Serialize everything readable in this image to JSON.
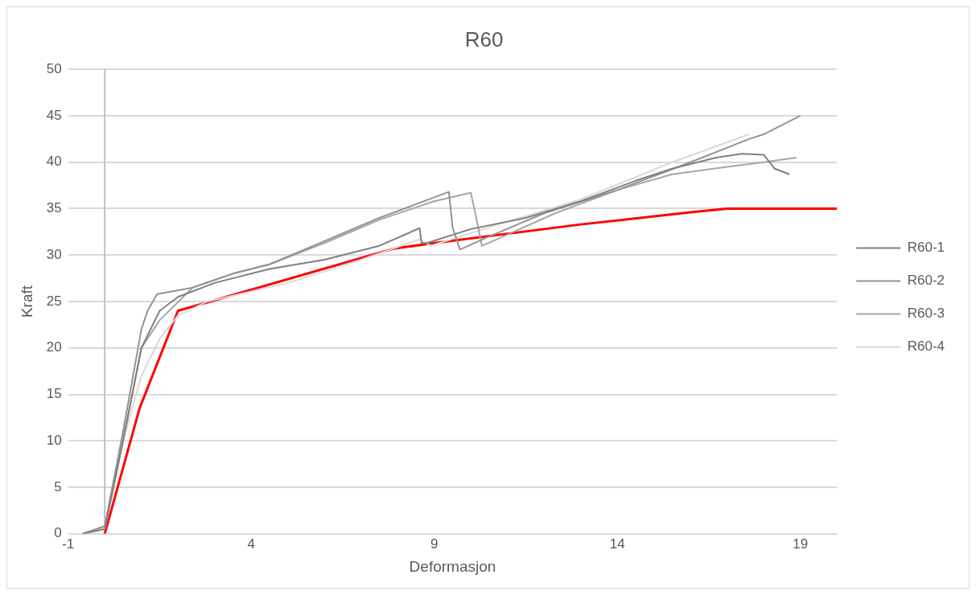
{
  "chart_data": {
    "type": "line",
    "title": "R60",
    "xlabel": "Deformasjon",
    "ylabel": "Kraft",
    "xlim": [
      -1,
      20
    ],
    "xticks": [
      -1,
      4,
      9,
      14,
      19
    ],
    "ylim": [
      0,
      50
    ],
    "yticks": [
      0,
      5,
      10,
      15,
      20,
      25,
      30,
      35,
      40,
      45,
      50
    ],
    "grid": "y",
    "legend": "right",
    "marker": "none",
    "line_style": "solid",
    "series": [
      {
        "name": "R60-1",
        "color": "#808080",
        "x": [
          -0.6,
          0,
          0.5,
          1,
          1.5,
          2,
          3,
          4.5,
          6,
          7.5,
          8.6,
          8.65,
          8.8,
          10,
          11.5,
          13,
          14.5,
          15.5,
          16.7,
          17.4,
          18,
          18.3,
          18.7
        ],
        "values": [
          0,
          0.5,
          10,
          20,
          24,
          25.5,
          27,
          28.5,
          29.5,
          31,
          32.9,
          31.3,
          31.3,
          32.8,
          34,
          35.8,
          38,
          39.3,
          40.5,
          40.9,
          40.8,
          39.3,
          38.7
        ]
      },
      {
        "name": "R60-2",
        "color": "#939393",
        "x": [
          -0.6,
          0,
          0.5,
          1,
          1.17,
          1.43,
          2.4,
          3.5,
          4.5,
          6,
          7.5,
          9.4,
          9.5,
          9.7,
          10.5,
          12,
          14,
          16,
          17.6,
          18,
          19
        ],
        "values": [
          0,
          0.8,
          11,
          22,
          24,
          25.8,
          26.5,
          28,
          29,
          31.5,
          34,
          36.8,
          33,
          30.6,
          32,
          34.5,
          37,
          40,
          42.5,
          43,
          45
        ]
      },
      {
        "name": "R60-3",
        "color": "#a6a6a6",
        "x": [
          -0.6,
          0,
          0.5,
          1,
          1.5,
          2.4,
          3.5,
          4.5,
          6,
          7.5,
          9,
          10,
          10.2,
          10.3,
          10.6,
          12.3,
          14,
          15.5,
          17,
          18,
          18.9
        ],
        "values": [
          0,
          0.8,
          10,
          20,
          23,
          26.5,
          28,
          29,
          31.3,
          33.8,
          35.8,
          36.7,
          33,
          31,
          31.5,
          34.5,
          37,
          38.7,
          39.5,
          40,
          40.5
        ]
      },
      {
        "name": "R60-4",
        "color": "#d9d9d9",
        "x": [
          -0.6,
          0,
          0.5,
          1,
          1.5,
          2,
          2.8,
          5,
          7,
          8.6,
          8.9,
          10.5,
          13,
          15.5,
          17.6
        ],
        "values": [
          0,
          0.5,
          10,
          17,
          21,
          23.5,
          25,
          27,
          29.5,
          31.7,
          31,
          33,
          36,
          40,
          43
        ]
      },
      {
        "color": "#ff0000",
        "x": [
          0,
          0.95,
          2,
          7.9,
          9,
          13,
          16,
          17,
          20
        ],
        "values": [
          0,
          13.5,
          24,
          30.7,
          31.3,
          33.3,
          34.6,
          35,
          35
        ]
      }
    ]
  }
}
